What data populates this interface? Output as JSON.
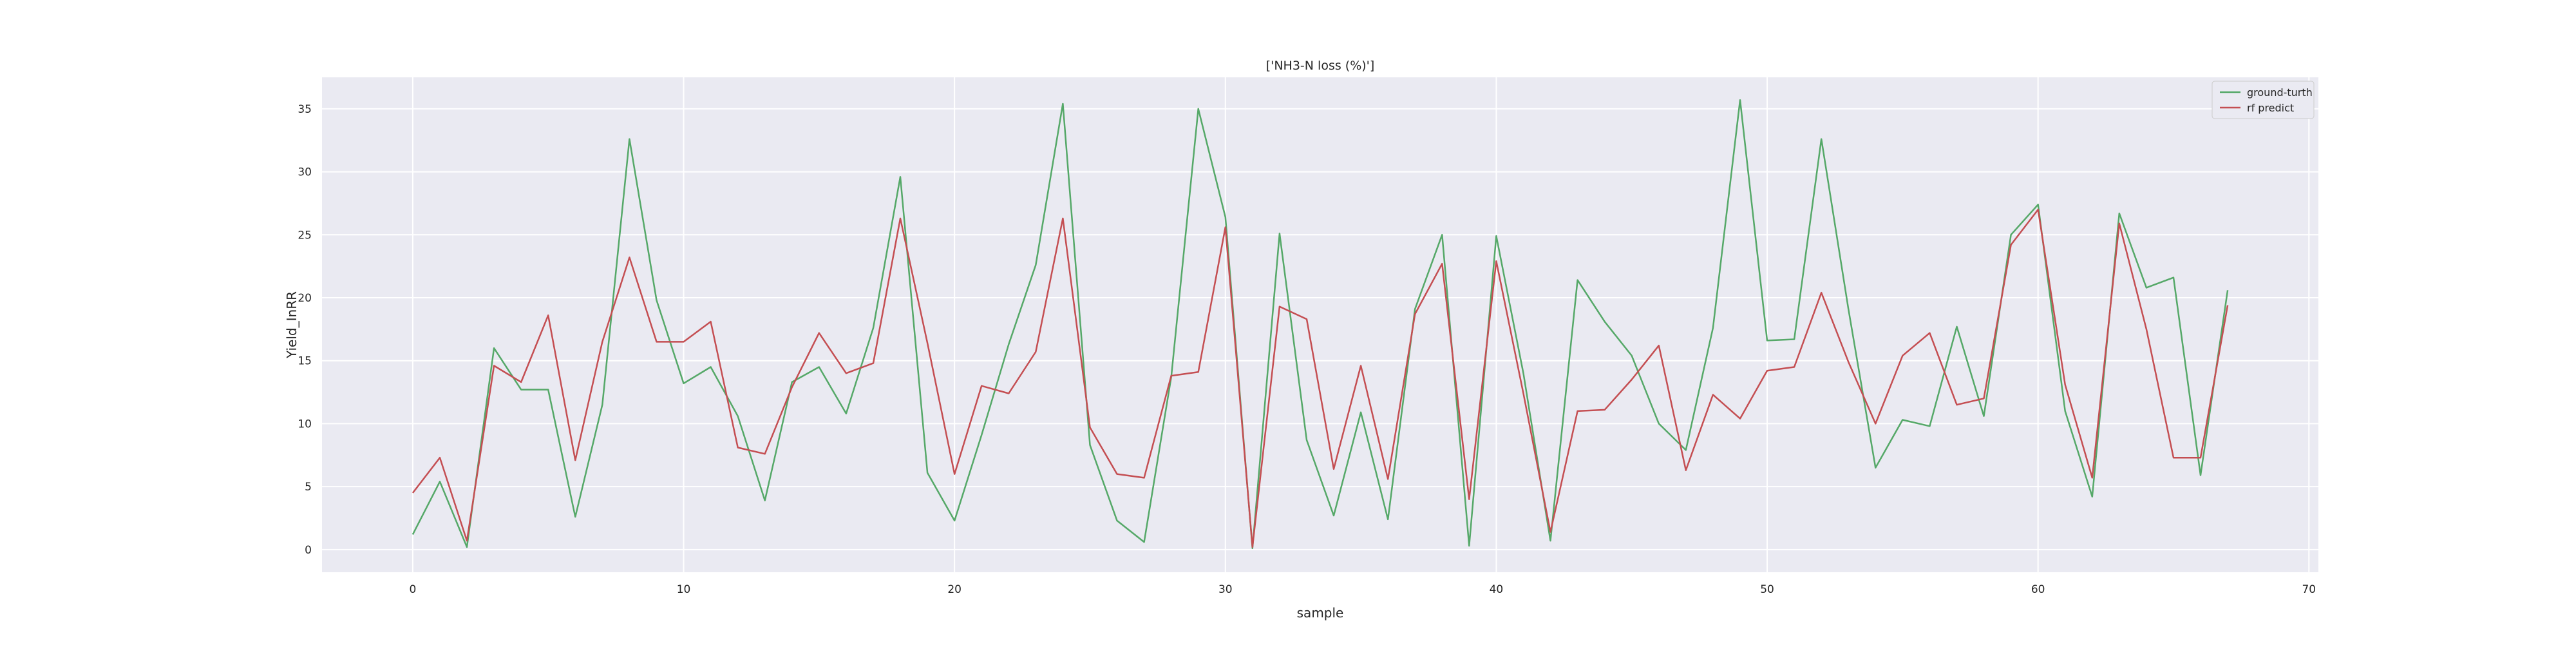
{
  "chart_data": {
    "type": "line",
    "title": "['NH3-N loss (%)']",
    "xlabel": "sample",
    "ylabel": "Yield_InRR",
    "xlim": [
      -3.35,
      70.35
    ],
    "ylim": [
      -1.8,
      37.5
    ],
    "xticks": [
      0,
      10,
      20,
      30,
      40,
      50,
      60,
      70
    ],
    "yticks": [
      0,
      5,
      10,
      15,
      20,
      25,
      30,
      35
    ],
    "grid": true,
    "legend_position": "top-right",
    "background": "#eaeaf2",
    "x": [
      0,
      1,
      2,
      3,
      4,
      5,
      6,
      7,
      8,
      9,
      10,
      11,
      12,
      13,
      14,
      15,
      16,
      17,
      18,
      19,
      20,
      21,
      22,
      23,
      24,
      25,
      26,
      27,
      28,
      29,
      30,
      31,
      32,
      33,
      34,
      35,
      36,
      37,
      38,
      39,
      40,
      41,
      42,
      43,
      44,
      45,
      46,
      47,
      48,
      49,
      50,
      51,
      52,
      53,
      54,
      55,
      56,
      57,
      58,
      59,
      60,
      61,
      62,
      63,
      64,
      65,
      66,
      67
    ],
    "series": [
      {
        "name": "ground-turth",
        "color": "#55a868",
        "values": [
          1.2,
          5.4,
          0.2,
          16.0,
          12.7,
          12.7,
          2.6,
          11.5,
          32.6,
          19.8,
          13.2,
          14.5,
          10.6,
          3.9,
          13.3,
          14.5,
          10.8,
          17.6,
          29.6,
          6.1,
          2.3,
          9.1,
          16.3,
          22.6,
          35.4,
          8.3,
          2.3,
          0.6,
          13.7,
          35.0,
          26.4,
          0.1,
          25.1,
          8.7,
          2.7,
          10.9,
          2.4,
          19.1,
          25.0,
          0.3,
          24.9,
          14.0,
          0.7,
          21.4,
          18.1,
          15.4,
          10.0,
          7.9,
          17.6,
          35.7,
          16.6,
          16.7,
          32.6,
          19.1,
          6.5,
          10.3,
          9.8,
          17.7,
          10.6,
          25.0,
          27.4,
          11.0,
          4.2,
          26.7,
          20.8,
          21.6,
          5.9,
          20.6
        ]
      },
      {
        "name": "rf predict",
        "color": "#c44e52",
        "values": [
          4.5,
          7.3,
          0.7,
          14.6,
          13.3,
          18.6,
          7.1,
          16.5,
          23.2,
          16.5,
          16.5,
          18.1,
          8.1,
          7.6,
          12.9,
          17.2,
          14.0,
          14.8,
          26.3,
          16.4,
          6.0,
          13.0,
          12.4,
          15.7,
          26.3,
          9.7,
          6.0,
          5.7,
          13.8,
          14.1,
          25.6,
          0.2,
          19.3,
          18.3,
          6.4,
          14.6,
          5.6,
          18.7,
          22.7,
          4.0,
          22.9,
          12.4,
          1.4,
          11.0,
          11.1,
          13.5,
          16.2,
          6.3,
          12.3,
          10.4,
          14.2,
          14.5,
          20.4,
          14.9,
          10.0,
          15.4,
          17.2,
          11.5,
          12.0,
          24.2,
          27.0,
          13.1,
          5.7,
          25.9,
          17.5,
          7.3,
          7.3,
          19.4
        ]
      }
    ]
  }
}
